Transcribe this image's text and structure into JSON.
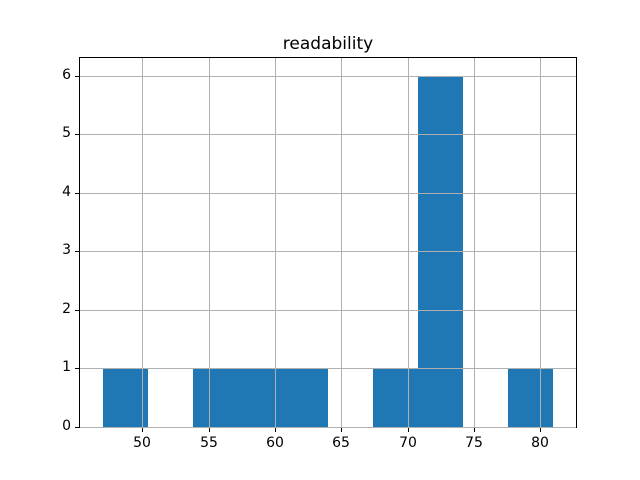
{
  "figure": {
    "background": "#ffffff"
  },
  "chart_data": {
    "type": "bar",
    "variant": "histogram",
    "title": "readability",
    "xlabel": "",
    "ylabel": "",
    "bin_edges": [
      47.0,
      50.4,
      53.8,
      57.2,
      60.6,
      64.0,
      67.4,
      70.8,
      74.2,
      77.6,
      81.0
    ],
    "counts": [
      1,
      0,
      1,
      1,
      1,
      0,
      1,
      6,
      0,
      1
    ],
    "xticks": [
      50,
      55,
      60,
      65,
      70,
      75,
      80
    ],
    "yticks": [
      0,
      1,
      2,
      3,
      4,
      5,
      6
    ],
    "xlim": [
      45.3,
      82.7
    ],
    "ylim": [
      0,
      6.3
    ],
    "grid": true,
    "grid_over_bars": true,
    "legend": false,
    "bar_color": "#1f77b4",
    "grid_color": "#b0b0b0",
    "axis_color": "#000000",
    "text_color": "#000000"
  }
}
